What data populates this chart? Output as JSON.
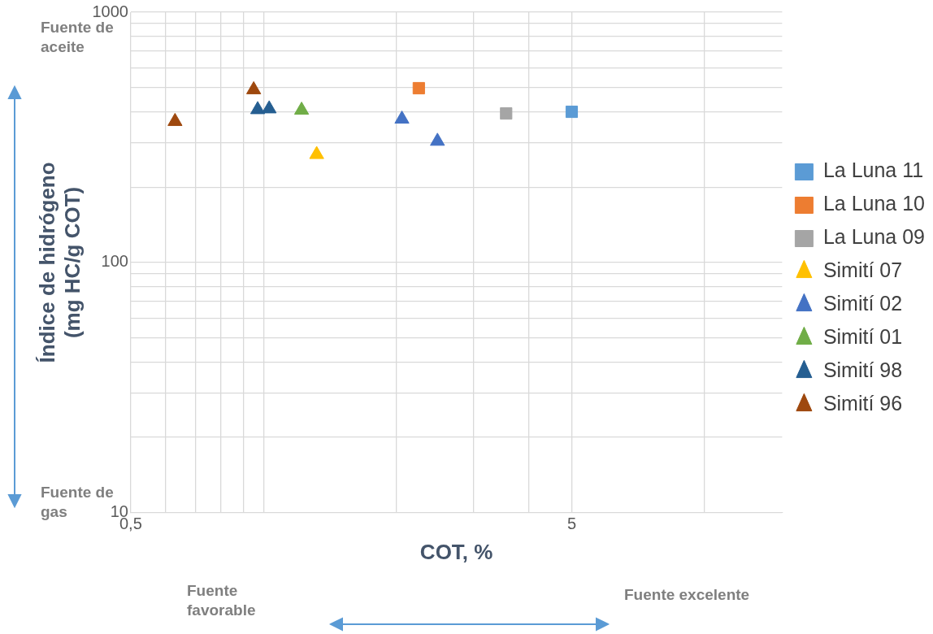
{
  "chart_data": {
    "type": "scatter",
    "xlabel": "COT, %",
    "ylabel": "Índice de hidrógeno\n(mg HC/g COT)",
    "log": "xy",
    "grid": true,
    "legend": "right",
    "xlim": [
      0.5,
      15
    ],
    "ylim": [
      10,
      1000
    ],
    "xticks": [
      {
        "value": 0.5,
        "label": "0,5"
      },
      {
        "value": 0.6,
        "label": null
      },
      {
        "value": 0.7,
        "label": null
      },
      {
        "value": 0.8,
        "label": null
      },
      {
        "value": 0.9,
        "label": null
      },
      {
        "value": 1,
        "label": null
      },
      {
        "value": 2,
        "label": null
      },
      {
        "value": 3,
        "label": null
      },
      {
        "value": 4,
        "label": null
      },
      5,
      {
        "value": 10,
        "label": null
      }
    ],
    "yticks": [
      10,
      {
        "value": 20,
        "label": null
      },
      {
        "value": 30,
        "label": null
      },
      {
        "value": 40,
        "label": null
      },
      {
        "value": 50,
        "label": null
      },
      {
        "value": 60,
        "label": null
      },
      {
        "value": 70,
        "label": null
      },
      {
        "value": 80,
        "label": null
      },
      {
        "value": 90,
        "label": null
      },
      100,
      {
        "value": 200,
        "label": null
      },
      {
        "value": 300,
        "label": null
      },
      {
        "value": 400,
        "label": null
      },
      {
        "value": 500,
        "label": null
      },
      {
        "value": 600,
        "label": null
      },
      {
        "value": 700,
        "label": null
      },
      {
        "value": 800,
        "label": null
      },
      {
        "value": 900,
        "label": null
      },
      1000
    ],
    "annotations": [
      "Fuente de aceite",
      "Fuente de gas",
      "Fuente favorable",
      "Fuente excelente"
    ],
    "series": [
      {
        "name": "La Luna 11",
        "color": "#5b9bd5",
        "marker": "square",
        "x": [
          5
        ],
        "values": [
          400
        ]
      },
      {
        "name": "La Luna 10",
        "color": "#ed7d31",
        "marker": "square",
        "x": [
          2.25
        ],
        "values": [
          497
        ]
      },
      {
        "name": "La Luna 09",
        "color": "#a5a5a5",
        "marker": "square",
        "x": [
          3.55
        ],
        "values": [
          394
        ]
      },
      {
        "name": "Simití 07",
        "color": "#ffc000",
        "marker": "triangle",
        "x": [
          1.32
        ],
        "values": [
          270
        ]
      },
      {
        "name": "Simití 02",
        "color": "#4472c4",
        "marker": "triangle",
        "x": [
          2.06,
          2.48
        ],
        "values": [
          374,
          305
        ]
      },
      {
        "name": "Simití 01",
        "color": "#70ad47",
        "marker": "triangle",
        "x": [
          1.22
        ],
        "values": [
          406
        ]
      },
      {
        "name": "Simití 98",
        "color": "#255e91",
        "marker": "triangle",
        "x": [
          0.97,
          1.03
        ],
        "values": [
          408,
          411
        ]
      },
      {
        "name": "Simití 96",
        "color": "#9e480e",
        "marker": "triangle",
        "x": [
          0.63,
          0.95
        ],
        "values": [
          366,
          490
        ]
      }
    ]
  }
}
